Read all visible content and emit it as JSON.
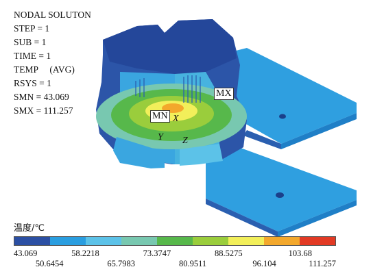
{
  "result_info": {
    "title": "NODAL SOLUTON",
    "step": "STEP = 1",
    "sub": "SUB = 1",
    "time": "TIME = 1",
    "temp": "TEMP     (AVG)",
    "rsys": "RSYS = 1",
    "smn": "SMN = 43.069",
    "smx": "SMX = 111.257"
  },
  "markers": {
    "mx": "MX",
    "mn": "MN"
  },
  "axes": {
    "x": "X",
    "y": "Y",
    "z": "Z"
  },
  "legend": {
    "title": "温度/℃",
    "colors": [
      "#2b4fa3",
      "#2a9ee0",
      "#5cc2e8",
      "#78c8b0",
      "#57b84b",
      "#9acd3c",
      "#f2ef5a",
      "#f3a82c",
      "#e23a24"
    ],
    "values_upper": [
      "43.069",
      "58.2218",
      "73.3747",
      "88.5275",
      "103.68"
    ],
    "values_lower": [
      "50.6454",
      "65.7983",
      "80.9511",
      "96.104",
      "111.257"
    ]
  }
}
